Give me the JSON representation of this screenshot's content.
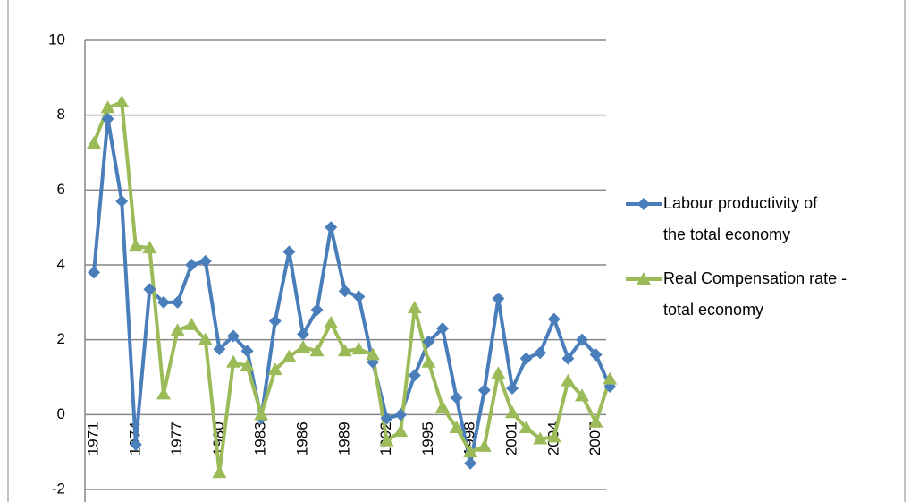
{
  "chart_data": {
    "type": "line",
    "categories": [
      "1971",
      null,
      null,
      "1974",
      null,
      null,
      "1977",
      null,
      null,
      "1980",
      null,
      null,
      "1983",
      null,
      null,
      "1986",
      null,
      null,
      "1989",
      null,
      null,
      "1992",
      null,
      null,
      "1995",
      null,
      null,
      "1998",
      null,
      null,
      "2001",
      null,
      null,
      "2004",
      null,
      null,
      "2007",
      null
    ],
    "series": [
      {
        "name": "Labour productivity of the total economy",
        "color": "#4a7ebb",
        "marker": "diamond",
        "values": [
          3.8,
          7.9,
          5.7,
          -0.8,
          3.35,
          3.0,
          3.0,
          4.0,
          4.1,
          1.75,
          2.1,
          1.7,
          -0.1,
          2.5,
          4.35,
          2.15,
          2.8,
          5.0,
          3.3,
          3.15,
          1.4,
          -0.1,
          0.0,
          1.05,
          1.95,
          2.3,
          0.45,
          -1.3,
          0.65,
          3.1,
          0.7,
          1.5,
          1.65,
          2.55,
          1.5,
          2.0,
          1.6,
          0.75
        ]
      },
      {
        "name": "Real Compensation rate - total economy",
        "color": "#9bbb59",
        "marker": "triangle",
        "values": [
          7.25,
          8.2,
          8.35,
          4.5,
          4.45,
          0.55,
          2.25,
          2.4,
          2.0,
          -1.55,
          1.4,
          1.3,
          0.0,
          1.2,
          1.55,
          1.8,
          1.7,
          2.45,
          1.7,
          1.75,
          1.6,
          -0.7,
          -0.45,
          2.85,
          1.4,
          0.2,
          -0.35,
          -1.0,
          -0.85,
          1.1,
          0.05,
          -0.35,
          -0.65,
          -0.6,
          0.9,
          0.5,
          -0.2,
          0.95
        ]
      }
    ],
    "ylim": [
      -2,
      10
    ],
    "yticks": [
      -2,
      0,
      2,
      4,
      6,
      8,
      10
    ],
    "grid": true,
    "legend": "right"
  }
}
